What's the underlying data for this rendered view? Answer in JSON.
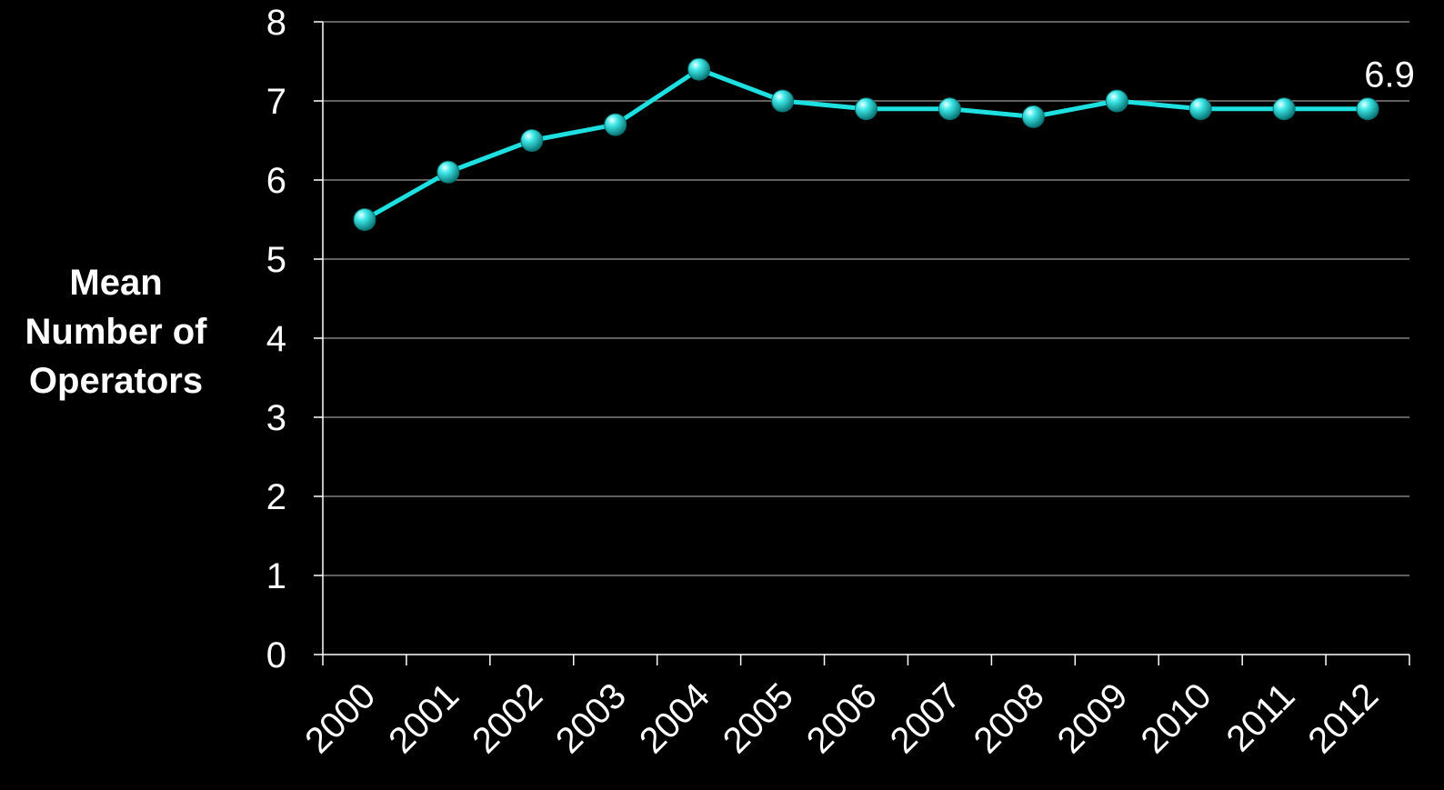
{
  "chart_data": {
    "type": "line",
    "title": "",
    "xlabel": "",
    "ylabel": "Mean\nNumber of\nOperators",
    "categories": [
      "2000",
      "2001",
      "2002",
      "2003",
      "2004",
      "2005",
      "2006",
      "2007",
      "2008",
      "2009",
      "2010",
      "2011",
      "2012"
    ],
    "series": [
      {
        "values": [
          5.5,
          6.1,
          6.5,
          6.7,
          7.4,
          7.0,
          6.9,
          6.9,
          6.8,
          7.0,
          6.9,
          6.9,
          6.9
        ],
        "color": "#1ee0e0"
      }
    ],
    "annotations": [
      {
        "category": "2012",
        "text": "6.9"
      }
    ],
    "ylim": [
      0,
      8
    ],
    "yticks": [
      0,
      1,
      2,
      3,
      4,
      5,
      6,
      7,
      8
    ],
    "grid": true,
    "legend": "none",
    "background": "#000000",
    "text_color": "#ffffff",
    "grid_color": "#808080"
  }
}
